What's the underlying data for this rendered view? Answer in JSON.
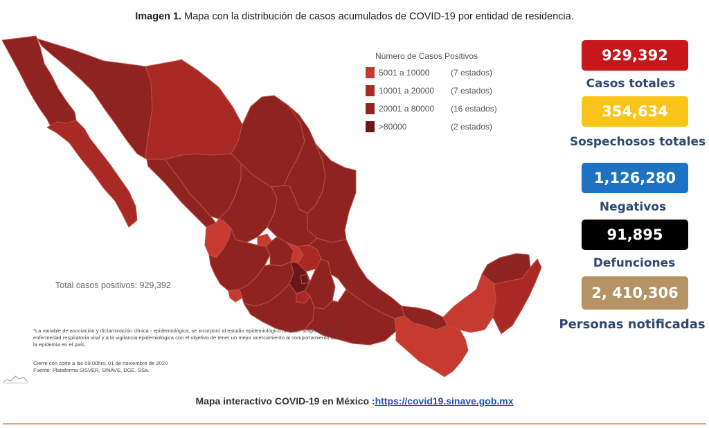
{
  "caption": {
    "bold": "Imagen 1.",
    "text": " Mapa con la distribución de casos acumulados de COVID-19 por entidad de residencia."
  },
  "colors": {
    "range_5001_10000": "#c73a30",
    "range_10001_20000": "#a92a25",
    "range_20001_80000": "#8f2320",
    "range_over_80000": "#6a1817",
    "border": "#c0504a",
    "cases_total": "#c8161d",
    "suspects": "#fbc41a",
    "negatives": "#1d72c4",
    "deaths": "#000000",
    "notified": "#b69365",
    "label_text": "#2f4870",
    "link": "#1f4fb3"
  },
  "legend": {
    "title": "Número de Casos Positivos",
    "items": [
      {
        "range": "5001 a  10000",
        "count": "(7 estados)",
        "color_key": "range_5001_10000"
      },
      {
        "range": "10001 a  20000",
        "count": "(7 estados)",
        "color_key": "range_10001_20000"
      },
      {
        "range": "20001 a  80000",
        "count": "(16 estados)",
        "color_key": "range_20001_80000"
      },
      {
        "range": ">80000",
        "count": "(2 estados)",
        "color_key": "range_over_80000"
      }
    ]
  },
  "map": {
    "total_text": "Total casos positivos: 929,392",
    "note": "*La variable de asociación y dictaminación clínica - epidemiológica, se incorporó al estudio epidemiológico de caso sospechoso de enfermedad respiratoria viral y a la vigilancia epidemiológica con el objetivo de tener un mejor acercamiento al comportamiento de la epidemia en el país.",
    "cutoff": "Cierre con corte a las 09:00hrs, 01 de noviembre de 2020",
    "source": "Fuente: Plataforma SISVER, SINAVE, DGE, SSa."
  },
  "stats": [
    {
      "value": "929,392",
      "label": "Casos totales",
      "color_key": "cases_total"
    },
    {
      "value": "354,634",
      "label": "Sospechosos totales",
      "color_key": "suspects"
    },
    {
      "value": "1,126,280",
      "label": "Negativos",
      "color_key": "negatives"
    },
    {
      "value": "91,895",
      "label": "Defunciones",
      "color_key": "deaths"
    },
    {
      "value": "2, 410,306",
      "label": "Personas notificadas",
      "color_key": "notified"
    }
  ],
  "footer": {
    "text": "Mapa interactivo COVID-19 en México :",
    "link": "https://covid19.sinave.gob.mx"
  }
}
